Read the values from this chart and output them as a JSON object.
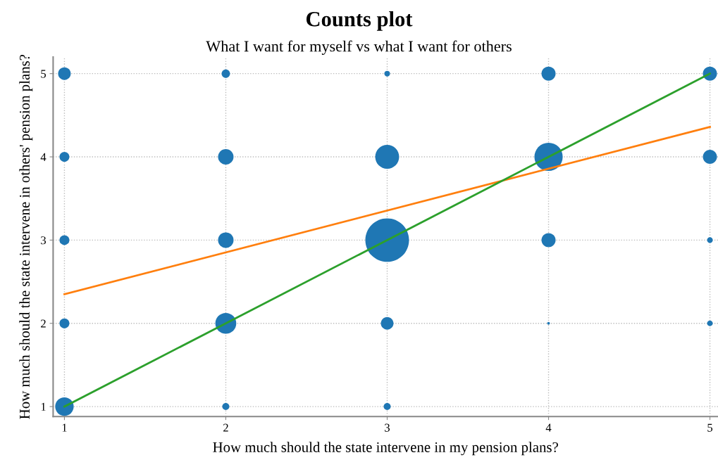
{
  "chart_data": {
    "type": "bubble",
    "title": "Counts plot",
    "subtitle": "What I want for myself vs what I want for others",
    "xlabel": "How much should the state intervene in my pension plans?",
    "ylabel": "How much should the state intervene in others' pension plans?",
    "xlim": [
      0.93,
      5.05
    ],
    "ylim": [
      0.88,
      5.2
    ],
    "xticks": [
      1,
      2,
      3,
      4,
      5
    ],
    "yticks": [
      1,
      2,
      3,
      4,
      5
    ],
    "grid": true,
    "series": [
      {
        "color": "#1f77b4",
        "x": [
          1,
          2,
          3,
          4,
          5,
          1,
          2,
          3,
          4,
          5,
          1,
          2,
          3,
          4,
          5,
          1,
          2,
          3,
          4,
          5,
          1,
          2,
          3
        ],
        "values": [
          5,
          5,
          5,
          5,
          5,
          4,
          4,
          4,
          4,
          4,
          3,
          3,
          3,
          3,
          3,
          2,
          2,
          2,
          2,
          2,
          1,
          1,
          1
        ],
        "sizes": [
          0.084,
          0.037,
          0.017,
          0.104,
          0.104,
          0.051,
          0.126,
          0.3,
          0.42,
          0.104,
          0.051,
          0.126,
          1,
          0.104,
          0.017,
          0.051,
          0.23,
          0.084,
          0.004,
          0.017,
          0.18,
          0.026,
          0.026
        ]
      },
      {
        "type": "line",
        "color": "#ff7f0e",
        "x": [
          1,
          5
        ],
        "values": [
          2.35,
          4.36
        ]
      },
      {
        "type": "line",
        "color": "#2ca02c",
        "x": [
          1,
          5
        ],
        "values": [
          1,
          5
        ]
      }
    ]
  }
}
